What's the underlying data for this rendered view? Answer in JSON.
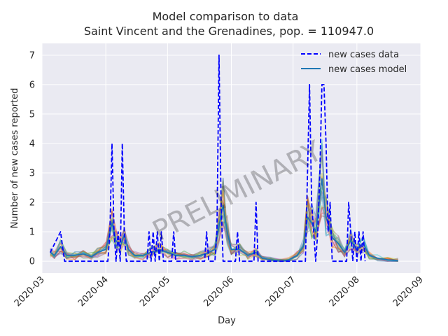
{
  "chart_data": {
    "type": "line",
    "title": "Model comparison to data",
    "subtitle": "Saint Vincent and the Grenadines, pop. = 110947.0",
    "xlabel": "Day",
    "ylabel": "Number of new cases reported",
    "watermark": "PRELIMINARY",
    "xlim": [
      "2020-03-01",
      "2020-09-01"
    ],
    "ylim": [
      -0.4,
      7.4
    ],
    "x_ticks": [
      "2020-03",
      "2020-04",
      "2020-05",
      "2020-06",
      "2020-07",
      "2020-08",
      "2020-09"
    ],
    "y_ticks": [
      "0",
      "1",
      "2",
      "3",
      "4",
      "5",
      "6",
      "7"
    ],
    "y_tick_values": [
      0,
      1,
      2,
      3,
      4,
      5,
      6,
      7
    ],
    "grid": true,
    "legend_position": "top-right",
    "colors": {
      "background": "#eaeaf2",
      "grid": "#ffffff",
      "data_line": "#0000ff",
      "model_line": "#1f77b4"
    },
    "ensemble_colors": [
      "#1f77b4",
      "#ff7f0e",
      "#2ca02c",
      "#d62728",
      "#9467bd",
      "#8c564b",
      "#e377c2",
      "#7f7f7f",
      "#bcbd22",
      "#17becf"
    ],
    "series": [
      {
        "name": "new cases data",
        "style": "dashed",
        "points": [
          [
            "2020-03-05",
            0.3
          ],
          [
            "2020-03-10",
            1.0
          ],
          [
            "2020-03-12",
            0
          ],
          [
            "2020-04-02",
            0
          ],
          [
            "2020-04-03",
            1
          ],
          [
            "2020-04-04",
            4
          ],
          [
            "2020-04-05",
            1
          ],
          [
            "2020-04-06",
            0
          ],
          [
            "2020-04-07",
            1
          ],
          [
            "2020-04-08",
            0
          ],
          [
            "2020-04-09",
            4
          ],
          [
            "2020-04-10",
            1
          ],
          [
            "2020-04-11",
            0
          ],
          [
            "2020-04-21",
            0
          ],
          [
            "2020-04-22",
            1
          ],
          [
            "2020-04-23",
            0
          ],
          [
            "2020-04-24",
            1
          ],
          [
            "2020-04-25",
            0
          ],
          [
            "2020-04-26",
            1
          ],
          [
            "2020-04-27",
            0
          ],
          [
            "2020-04-28",
            1
          ],
          [
            "2020-04-29",
            0
          ],
          [
            "2020-05-03",
            0
          ],
          [
            "2020-05-04",
            1
          ],
          [
            "2020-05-05",
            0
          ],
          [
            "2020-05-19",
            0
          ],
          [
            "2020-05-20",
            1
          ],
          [
            "2020-05-21",
            0
          ],
          [
            "2020-05-24",
            0
          ],
          [
            "2020-05-25",
            1
          ],
          [
            "2020-05-26",
            7
          ],
          [
            "2020-05-27",
            2
          ],
          [
            "2020-05-28",
            0
          ],
          [
            "2020-06-03",
            0
          ],
          [
            "2020-06-04",
            1
          ],
          [
            "2020-06-05",
            0
          ],
          [
            "2020-06-12",
            0
          ],
          [
            "2020-06-13",
            2
          ],
          [
            "2020-06-14",
            0
          ],
          [
            "2020-07-07",
            0
          ],
          [
            "2020-07-08",
            3
          ],
          [
            "2020-07-09",
            6
          ],
          [
            "2020-07-10",
            2
          ],
          [
            "2020-07-11",
            1
          ],
          [
            "2020-07-12",
            0
          ],
          [
            "2020-07-13",
            1
          ],
          [
            "2020-07-14",
            3
          ],
          [
            "2020-07-15",
            6
          ],
          [
            "2020-07-16",
            6
          ],
          [
            "2020-07-17",
            4
          ],
          [
            "2020-07-18",
            1
          ],
          [
            "2020-07-19",
            2
          ],
          [
            "2020-07-20",
            0
          ],
          [
            "2020-07-27",
            0
          ],
          [
            "2020-07-28",
            2
          ],
          [
            "2020-07-29",
            1
          ],
          [
            "2020-07-30",
            0
          ],
          [
            "2020-07-31",
            1
          ],
          [
            "2020-08-01",
            0
          ],
          [
            "2020-08-02",
            1
          ],
          [
            "2020-08-03",
            0
          ],
          [
            "2020-08-04",
            1
          ],
          [
            "2020-08-05",
            0
          ]
        ]
      },
      {
        "name": "new cases model",
        "style": "solid",
        "points": [
          [
            "2020-03-05",
            0.3
          ],
          [
            "2020-03-07",
            0.2
          ],
          [
            "2020-03-10",
            0.5
          ],
          [
            "2020-03-13",
            0.2
          ],
          [
            "2020-03-17",
            0.2
          ],
          [
            "2020-03-21",
            0.25
          ],
          [
            "2020-03-25",
            0.15
          ],
          [
            "2020-03-28",
            0.3
          ],
          [
            "2020-04-01",
            0.4
          ],
          [
            "2020-04-04",
            1.3
          ],
          [
            "2020-04-06",
            0.7
          ],
          [
            "2020-04-08",
            0.5
          ],
          [
            "2020-04-10",
            0.9
          ],
          [
            "2020-04-12",
            0.4
          ],
          [
            "2020-04-15",
            0.2
          ],
          [
            "2020-04-19",
            0.2
          ],
          [
            "2020-04-23",
            0.3
          ],
          [
            "2020-04-27",
            0.4
          ],
          [
            "2020-05-01",
            0.3
          ],
          [
            "2020-05-05",
            0.2
          ],
          [
            "2020-05-09",
            0.2
          ],
          [
            "2020-05-13",
            0.15
          ],
          [
            "2020-05-17",
            0.2
          ],
          [
            "2020-05-21",
            0.3
          ],
          [
            "2020-05-24",
            0.4
          ],
          [
            "2020-05-26",
            1.2
          ],
          [
            "2020-05-28",
            1.9
          ],
          [
            "2020-05-30",
            1.0
          ],
          [
            "2020-06-01",
            0.4
          ],
          [
            "2020-06-05",
            0.4
          ],
          [
            "2020-06-09",
            0.2
          ],
          [
            "2020-06-13",
            0.3
          ],
          [
            "2020-06-16",
            0.1
          ],
          [
            "2020-06-20",
            0.05
          ],
          [
            "2020-06-25",
            0.0
          ],
          [
            "2020-06-29",
            0.05
          ],
          [
            "2020-07-03",
            0.2
          ],
          [
            "2020-07-06",
            0.5
          ],
          [
            "2020-07-08",
            1.5
          ],
          [
            "2020-07-10",
            1.3
          ],
          [
            "2020-07-12",
            1.0
          ],
          [
            "2020-07-15",
            2.8
          ],
          [
            "2020-07-17",
            1.5
          ],
          [
            "2020-07-20",
            0.8
          ],
          [
            "2020-07-23",
            0.6
          ],
          [
            "2020-07-26",
            0.3
          ],
          [
            "2020-07-29",
            0.7
          ],
          [
            "2020-08-01",
            0.4
          ],
          [
            "2020-08-04",
            0.6
          ],
          [
            "2020-08-07",
            0.2
          ],
          [
            "2020-08-11",
            0.1
          ],
          [
            "2020-08-16",
            0.05
          ],
          [
            "2020-08-21",
            0.02
          ]
        ]
      }
    ]
  }
}
